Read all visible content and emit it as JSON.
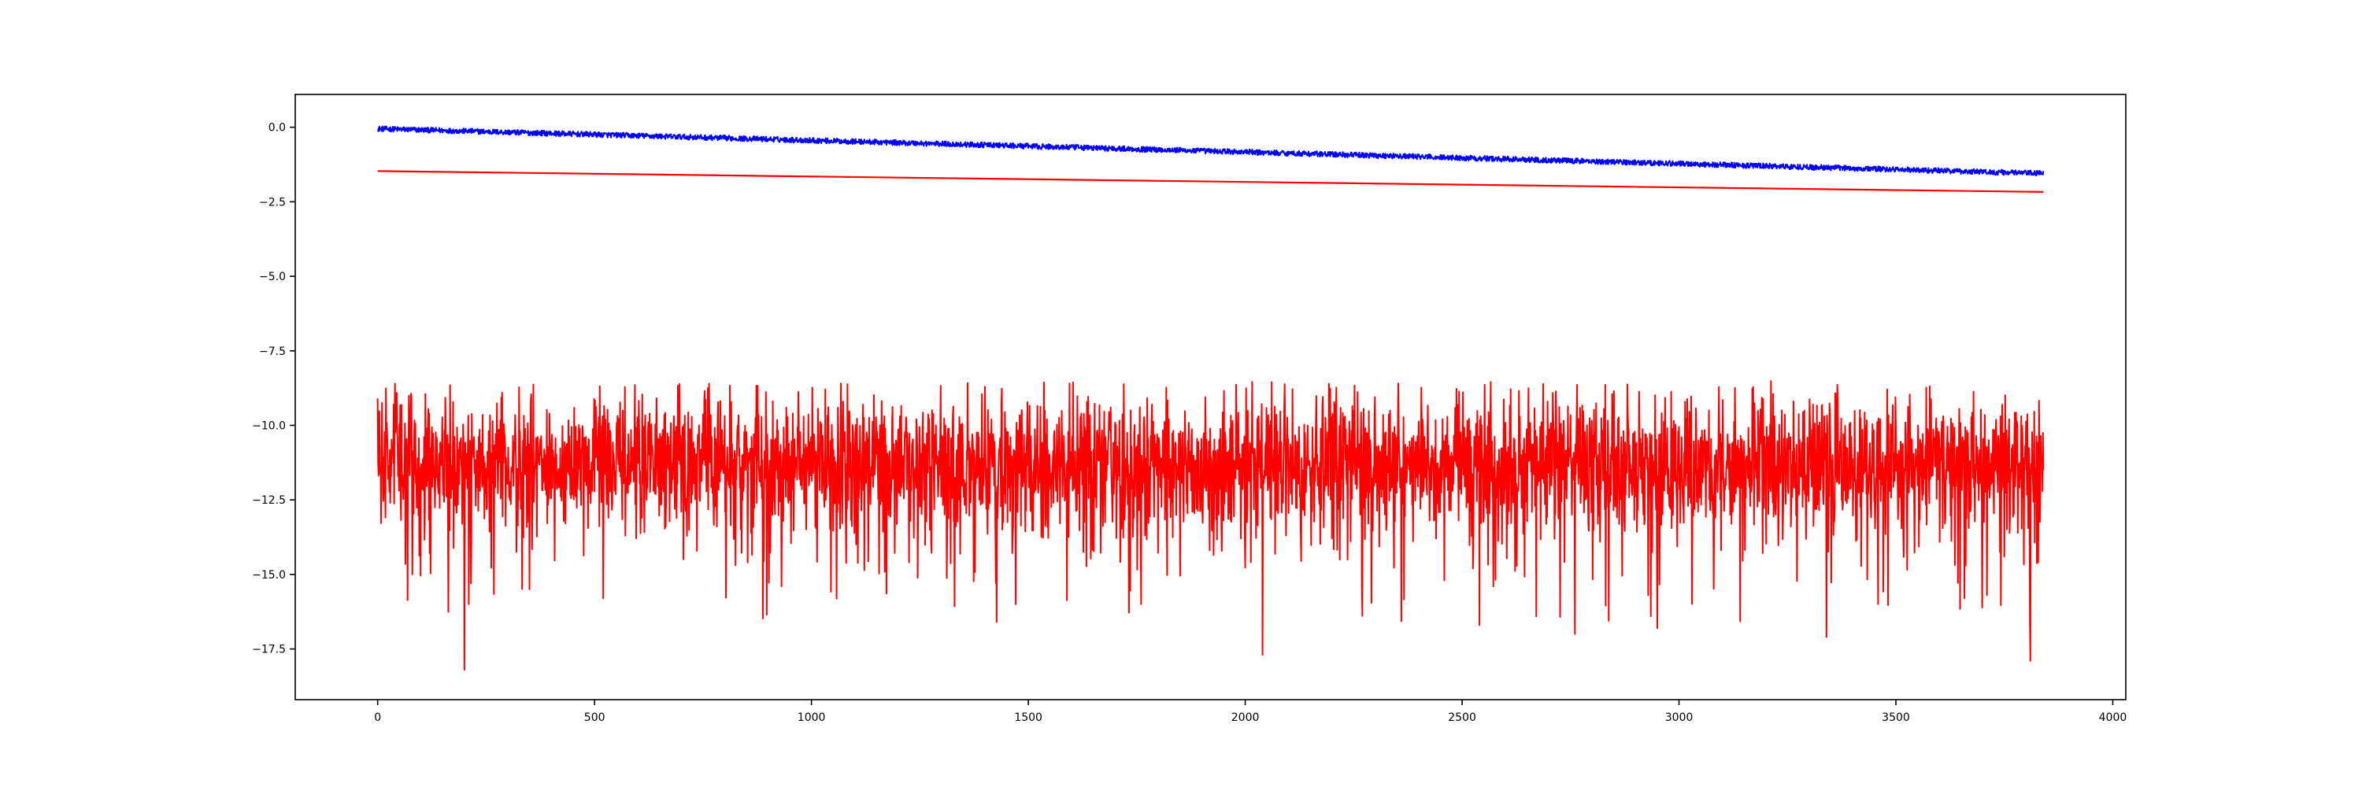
{
  "chart_data": {
    "type": "line",
    "title": "",
    "xlabel": "",
    "ylabel": "",
    "xlim": [
      -190,
      4030
    ],
    "ylim": [
      -19.2,
      1.1
    ],
    "x_ticks": [
      0,
      500,
      1000,
      1500,
      2000,
      2500,
      3000,
      3500,
      4000
    ],
    "x_tick_labels": [
      "0",
      "500",
      "1000",
      "1500",
      "2000",
      "2500",
      "3000",
      "3500",
      "4000"
    ],
    "y_ticks": [
      0.0,
      -2.5,
      -5.0,
      -7.5,
      -10.0,
      -12.5,
      -15.0,
      -17.5
    ],
    "y_tick_labels": [
      "0.0",
      "−2.5",
      "−5.0",
      "−7.5",
      "−10.0",
      "−12.5",
      "−15.0",
      "−17.5"
    ],
    "grid": false,
    "legend": "none",
    "n_points": 3840,
    "series": [
      {
        "color": "#0000ff",
        "style": "noisy-line",
        "trend_start": [
          0,
          -0.05
        ],
        "trend_end": [
          3840,
          -1.55
        ],
        "noise_amplitude": 0.09
      },
      {
        "color": "#ff0000",
        "style": "straight-line",
        "x": [
          0,
          3840
        ],
        "values": [
          -1.47,
          -2.17
        ]
      },
      {
        "color": "#ff0000",
        "style": "noisy-line",
        "baseline": -11.2,
        "noise_sd": 1.1,
        "range": [
          -18.2,
          -8.5
        ],
        "spikes": [
          [
            0,
            -9.1
          ],
          [
            20,
            -10.4
          ],
          [
            40,
            -8.6
          ],
          [
            200,
            -18.2
          ],
          [
            210,
            -16.0
          ],
          [
            350,
            -15.5
          ],
          [
            520,
            -15.8
          ],
          [
            1400,
            -8.7
          ],
          [
            1760,
            -16.0
          ],
          [
            2040,
            -17.7
          ],
          [
            2540,
            -16.7
          ],
          [
            2760,
            -17.0
          ],
          [
            2950,
            -16.8
          ],
          [
            3340,
            -17.1
          ],
          [
            3710,
            -15.7
          ],
          [
            3810,
            -17.9
          ],
          [
            3840,
            -11.5
          ]
        ]
      }
    ]
  }
}
